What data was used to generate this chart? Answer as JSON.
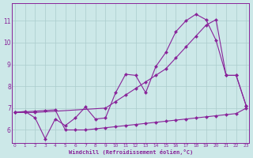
{
  "line_diag_x": [
    0,
    1,
    2,
    3,
    4,
    5,
    6,
    7,
    8,
    9,
    10,
    11,
    12,
    13,
    14,
    15,
    16,
    17,
    18,
    19,
    20,
    21,
    22,
    23
  ],
  "line_diag_y": [
    6.8,
    6.83,
    6.86,
    6.89,
    6.92,
    6.0,
    6.0,
    6.0,
    6.05,
    6.1,
    6.15,
    6.2,
    6.25,
    6.3,
    6.35,
    6.4,
    6.45,
    6.5,
    6.55,
    6.6,
    6.65,
    6.7,
    6.75,
    7.0
  ],
  "line_zigzag_x": [
    0,
    1,
    2,
    3,
    4,
    5,
    6,
    7,
    8,
    9,
    10,
    11,
    12,
    13,
    14,
    15,
    16,
    17,
    18,
    19,
    20,
    21,
    22,
    23
  ],
  "line_zigzag_y": [
    6.8,
    6.85,
    6.55,
    5.6,
    6.5,
    6.2,
    6.55,
    7.05,
    6.5,
    6.55,
    7.7,
    8.55,
    8.5,
    7.7,
    8.9,
    9.55,
    10.5,
    11.0,
    11.3,
    11.05,
    10.1,
    8.5,
    8.5,
    7.1
  ],
  "line_upper_x": [
    0,
    2,
    9,
    10,
    11,
    12,
    13,
    14,
    15,
    16,
    17,
    18,
    19,
    20,
    21,
    22,
    23
  ],
  "line_upper_y": [
    6.8,
    6.8,
    7.0,
    7.3,
    7.6,
    7.9,
    8.2,
    8.5,
    8.8,
    9.3,
    9.8,
    10.3,
    10.8,
    11.05,
    8.5,
    8.5,
    7.1
  ],
  "color": "#882299",
  "bg_color": "#cce8e8",
  "grid_color": "#aacccc",
  "xlabel": "Windchill (Refroidissement éolien,°C)",
  "yticks": [
    6,
    7,
    8,
    9,
    10,
    11
  ],
  "xticks": [
    0,
    1,
    2,
    3,
    4,
    5,
    6,
    7,
    8,
    9,
    10,
    11,
    12,
    13,
    14,
    15,
    16,
    17,
    18,
    19,
    20,
    21,
    22,
    23
  ],
  "ylim": [
    5.4,
    11.8
  ],
  "xlim": [
    -0.3,
    23.3
  ]
}
